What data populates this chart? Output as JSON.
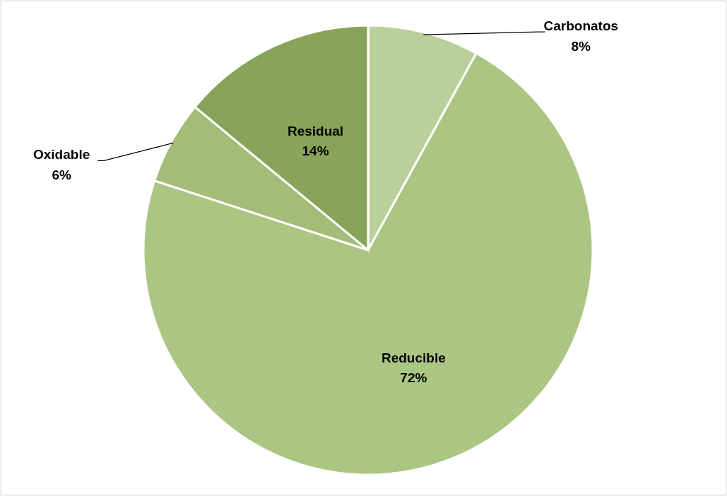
{
  "chart_data": {
    "type": "pie",
    "categories": [
      "Carbonatos",
      "Reducible",
      "Oxidable",
      "Residual"
    ],
    "values": [
      8,
      72,
      6,
      14
    ],
    "colors": [
      "#b9d09a",
      "#abc582",
      "#a3bd78",
      "#88a35a"
    ],
    "value_labels": [
      "8%",
      "72%",
      "6%",
      "14%"
    ]
  }
}
